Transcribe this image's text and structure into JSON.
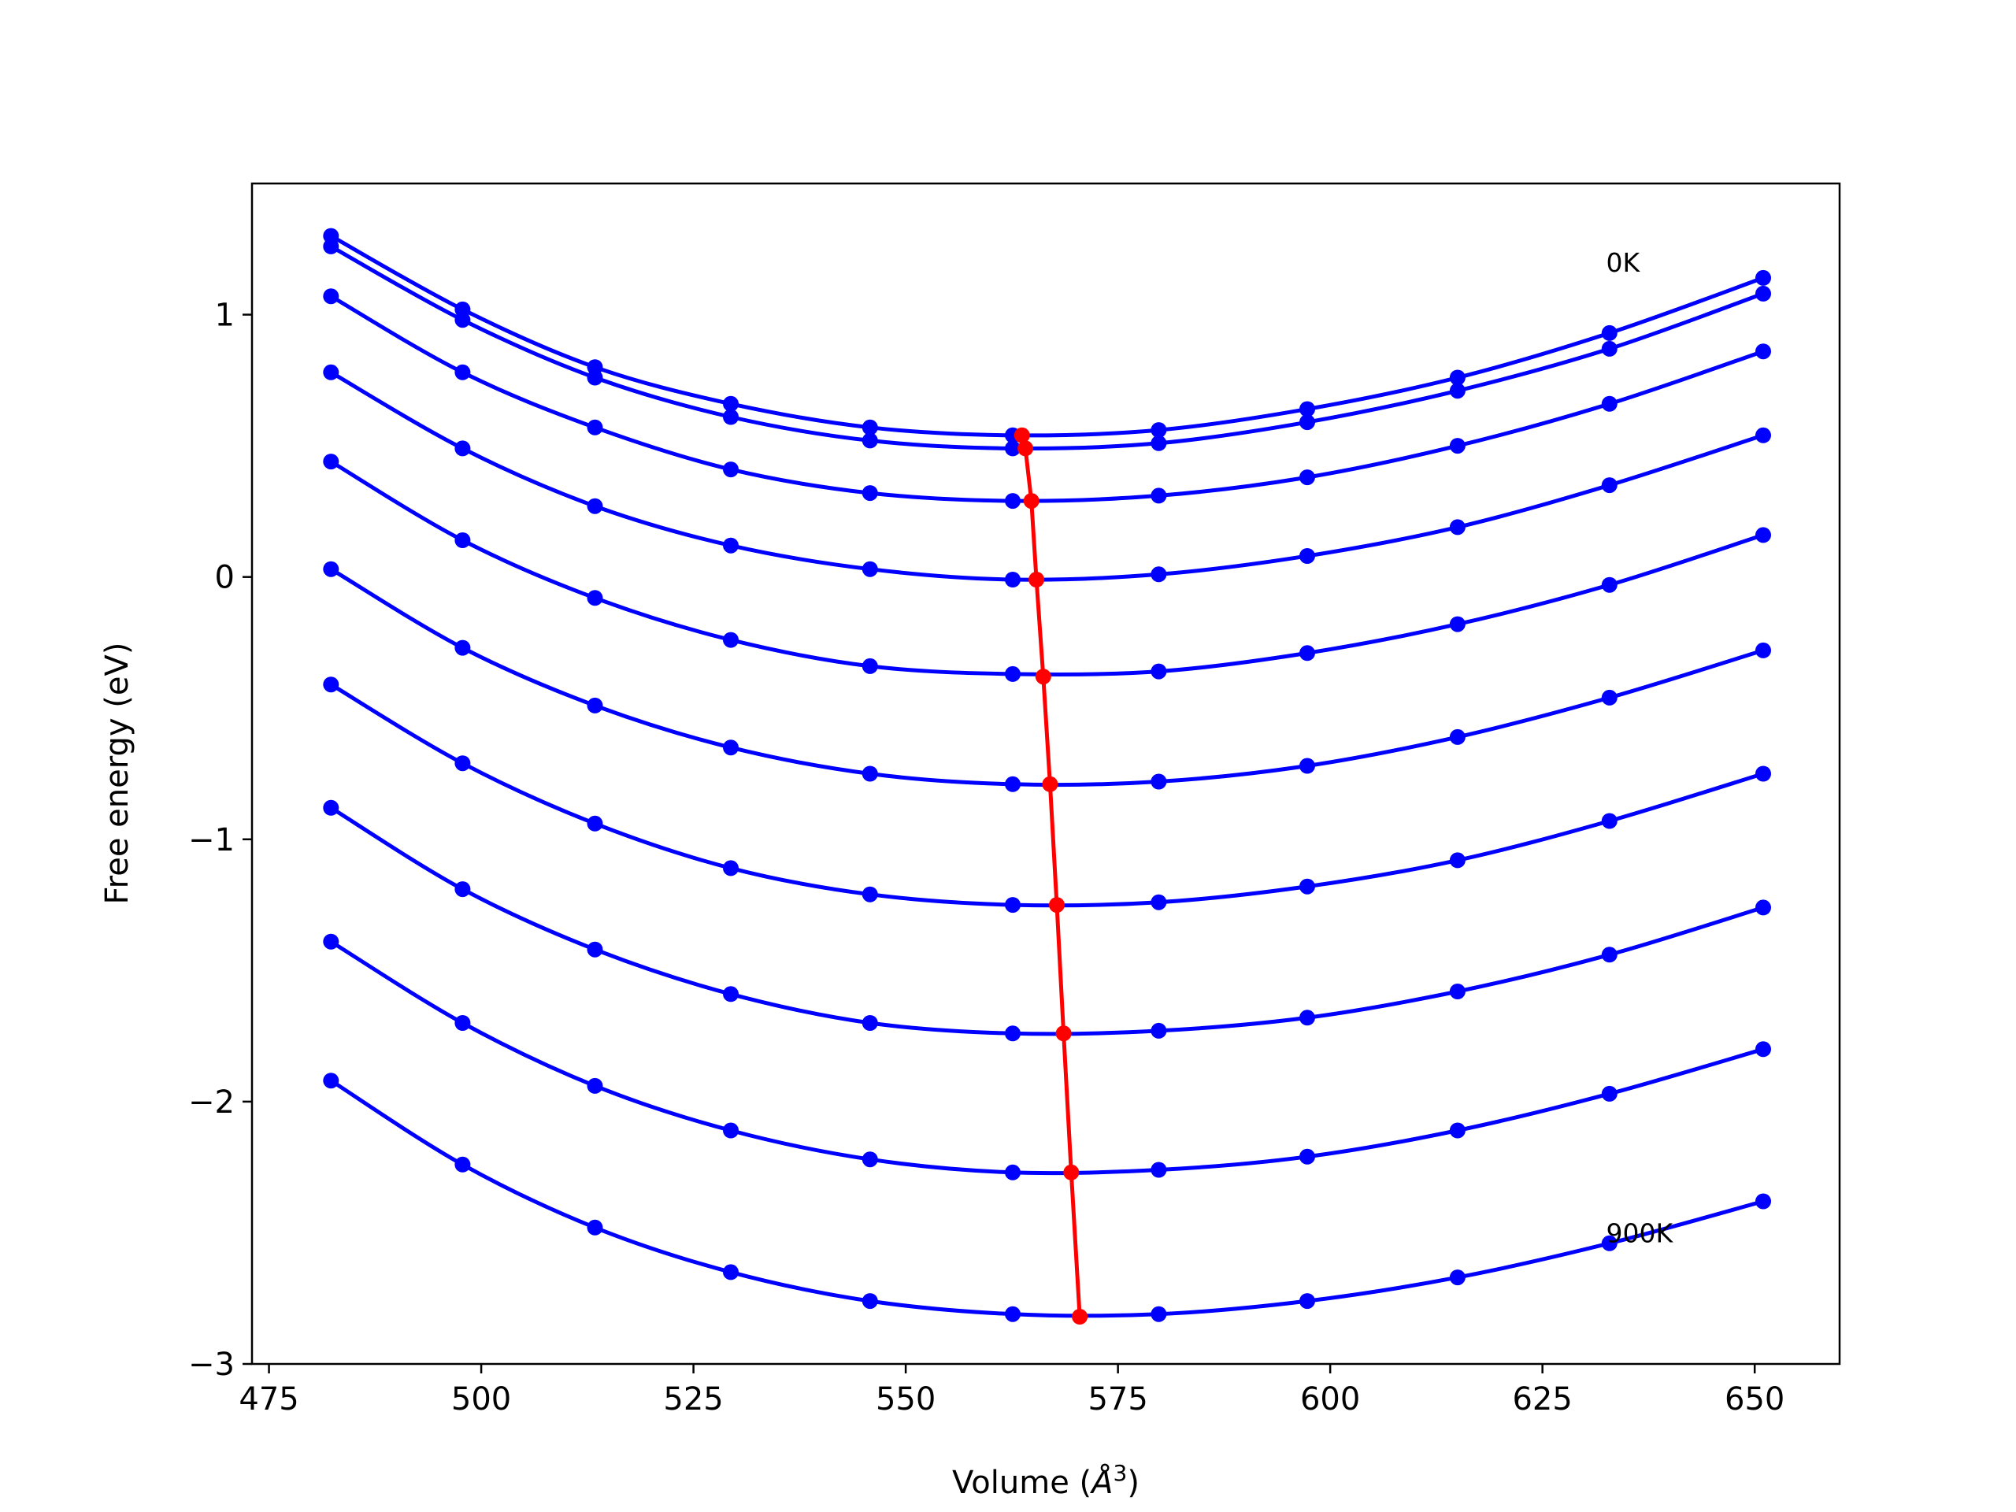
{
  "chart_data": {
    "type": "line",
    "title": "",
    "xlabel": "Volume (",
    "xlabel_symbol": "Å",
    "xlabel_sup": "3",
    "xlabel_close": ")",
    "ylabel": "Free energy (eV)",
    "xlim": [
      473,
      660
    ],
    "ylim": [
      -3.0,
      1.5
    ],
    "xticks": [
      475,
      500,
      525,
      550,
      575,
      600,
      625,
      650
    ],
    "xtick_labels": [
      "475",
      "500",
      "525",
      "550",
      "575",
      "600",
      "625",
      "650"
    ],
    "yticks": [
      -3,
      -2,
      -1,
      0,
      1
    ],
    "ytick_labels": [
      "−3",
      "−2",
      "−1",
      "0",
      "1"
    ],
    "grid": false,
    "annotations": [
      {
        "text": "0K",
        "x": 632.5,
        "y": 1.2
      },
      {
        "text": "900K",
        "x": 632.5,
        "y": -2.5
      }
    ],
    "x": [
      482.3,
      497.8,
      513.4,
      529.4,
      545.8,
      562.6,
      579.8,
      597.3,
      615.0,
      632.9,
      651.0
    ],
    "series": [
      {
        "name": "",
        "color": "#0000ff",
        "values": [
          1.3,
          1.02,
          0.8,
          0.66,
          0.57,
          0.54,
          0.56,
          0.64,
          0.76,
          0.93,
          1.14
        ]
      },
      {
        "name": "",
        "color": "#0000ff",
        "values": [
          1.26,
          0.98,
          0.76,
          0.61,
          0.52,
          0.49,
          0.51,
          0.59,
          0.71,
          0.87,
          1.08
        ]
      },
      {
        "name": "",
        "color": "#0000ff",
        "values": [
          1.07,
          0.78,
          0.57,
          0.41,
          0.32,
          0.29,
          0.31,
          0.38,
          0.5,
          0.66,
          0.86
        ]
      },
      {
        "name": "",
        "color": "#0000ff",
        "values": [
          0.78,
          0.49,
          0.27,
          0.12,
          0.03,
          -0.01,
          0.01,
          0.08,
          0.19,
          0.35,
          0.54
        ]
      },
      {
        "name": "",
        "color": "#0000ff",
        "values": [
          0.44,
          0.14,
          -0.08,
          -0.24,
          -0.34,
          -0.37,
          -0.36,
          -0.29,
          -0.18,
          -0.03,
          0.16
        ]
      },
      {
        "name": "",
        "color": "#0000ff",
        "values": [
          0.03,
          -0.27,
          -0.49,
          -0.65,
          -0.75,
          -0.79,
          -0.78,
          -0.72,
          -0.61,
          -0.46,
          -0.28
        ]
      },
      {
        "name": "",
        "color": "#0000ff",
        "values": [
          -0.41,
          -0.71,
          -0.94,
          -1.11,
          -1.21,
          -1.25,
          -1.24,
          -1.18,
          -1.08,
          -0.93,
          -0.75
        ]
      },
      {
        "name": "",
        "color": "#0000ff",
        "values": [
          -0.88,
          -1.19,
          -1.42,
          -1.59,
          -1.7,
          -1.74,
          -1.73,
          -1.68,
          -1.58,
          -1.44,
          -1.26
        ]
      },
      {
        "name": "",
        "color": "#0000ff",
        "values": [
          -1.39,
          -1.7,
          -1.94,
          -2.11,
          -2.22,
          -2.27,
          -2.26,
          -2.21,
          -2.11,
          -1.97,
          -1.8
        ]
      },
      {
        "name": "",
        "color": "#0000ff",
        "values": [
          -1.92,
          -2.24,
          -2.48,
          -2.65,
          -2.76,
          -2.81,
          -2.81,
          -2.76,
          -2.67,
          -2.54,
          -2.38
        ]
      }
    ],
    "minima_line": {
      "name": "",
      "color": "#ff0000",
      "x": [
        563.7,
        564.1,
        564.8,
        565.4,
        566.2,
        567.0,
        567.8,
        568.6,
        569.5,
        570.5
      ],
      "y": [
        0.54,
        0.49,
        0.29,
        -0.01,
        -0.38,
        -0.79,
        -1.25,
        -1.74,
        -2.27,
        -2.82
      ]
    }
  }
}
